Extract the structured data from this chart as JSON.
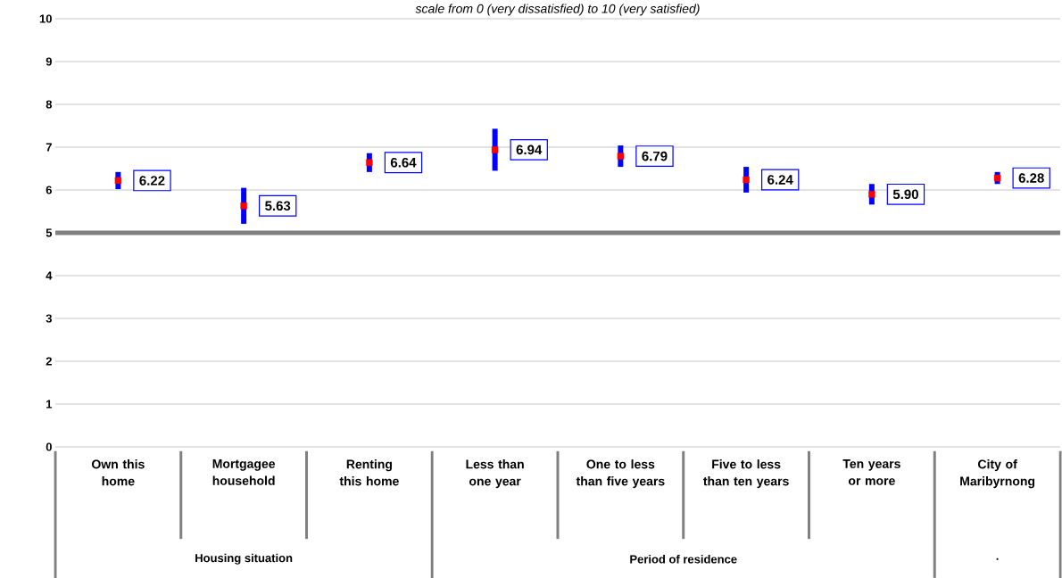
{
  "chart_data": {
    "type": "scatter",
    "subtitle": "scale from 0 (very dissatisfied) to 10 (very satisfied)",
    "categories": [
      "Own this home",
      "Mortgagee household",
      "Renting this home",
      "Less than one year",
      "One to less than five years",
      "Five to less than ten years",
      "Ten years or more",
      "City of Maribyrnong"
    ],
    "values": [
      6.22,
      5.63,
      6.64,
      6.94,
      6.79,
      6.24,
      5.9,
      6.28
    ],
    "value_labels": [
      "6.22",
      "5.63",
      "6.64",
      "6.94",
      "6.79",
      "6.24",
      "5.90",
      "6.28"
    ],
    "errors": [
      0.2,
      0.42,
      0.22,
      0.49,
      0.25,
      0.3,
      0.24,
      0.14
    ],
    "color": "#ff0000",
    "marker": "square",
    "ylim": [
      0,
      10
    ],
    "yticks": [
      0,
      1,
      2,
      3,
      4,
      5,
      6,
      7,
      8,
      9,
      10
    ],
    "grid": "y",
    "ref_lines": [
      {
        "axis": "y",
        "value": 5,
        "color": "#808080"
      }
    ],
    "annotations": [
      "Housing situation",
      "Period of residence",
      "."
    ]
  }
}
